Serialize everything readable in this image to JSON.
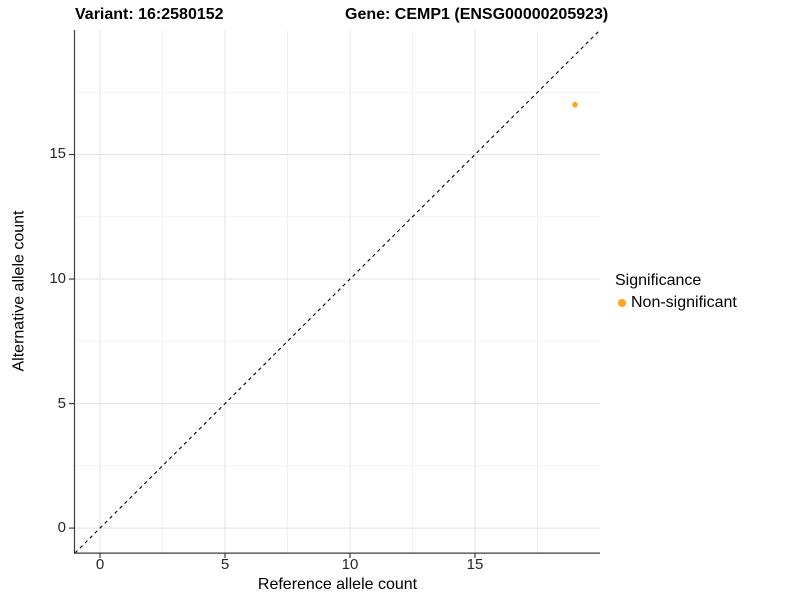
{
  "figure": {
    "title_variant": "Variant: 16:2580152",
    "title_gene": "Gene: CEMP1 (ENSG00000205923)"
  },
  "chart_data": {
    "type": "scatter",
    "title": "Variant: 16:2580152 — Gene: CEMP1 (ENSG00000205923)",
    "xlabel": "Reference allele count",
    "ylabel": "Alternative allele count",
    "xlim": [
      -1,
      20
    ],
    "ylim": [
      -1,
      20
    ],
    "x_major_ticks": [
      0,
      5,
      10,
      15
    ],
    "y_major_ticks": [
      0,
      5,
      10,
      15
    ],
    "x_minor_gridlines": [
      2.5,
      7.5,
      12.5,
      17.5
    ],
    "y_minor_gridlines": [
      2.5,
      7.5,
      12.5,
      17.5
    ],
    "grid": "on",
    "points": [
      {
        "x": 19,
        "y": 17,
        "series": "Non-significant",
        "color": "#FFA41B"
      }
    ],
    "identity_line": {
      "type": "y=x",
      "from": -1,
      "to": 20,
      "style": "dashed",
      "color": "#000000"
    },
    "legend": {
      "position": "right",
      "title": "Significance",
      "entries": [
        {
          "label": "Non-significant",
          "color": "#FFA41B",
          "marker": "circle"
        }
      ]
    }
  },
  "colors": {
    "background": "#FFFFFF",
    "grid_major": "#E3E3E3",
    "grid_minor": "#F2F2F2",
    "axis_line": "#3C3C3C",
    "tick_text": "#262626",
    "point": "#FFA41B"
  }
}
